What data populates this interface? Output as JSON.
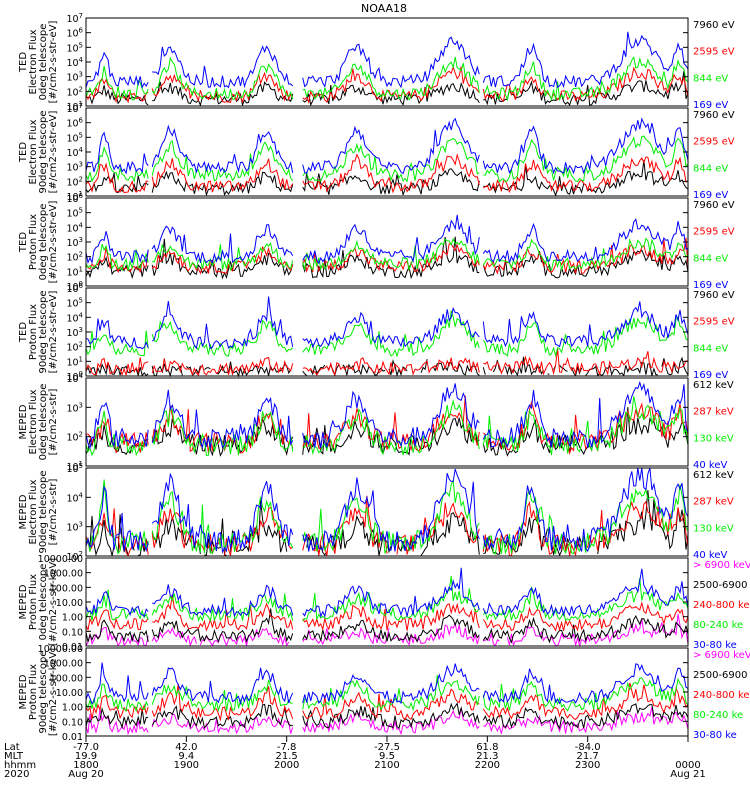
{
  "chart_data": {
    "type": "line",
    "title": "NOAA18",
    "year": "2020",
    "panels": [
      {
        "ylabel": [
          "TED",
          "Electron Flux",
          "0deg telescope",
          "[#/cm2-s-str-eV]"
        ],
        "ytick_labels": [
          "10^1",
          "10^2",
          "10^3",
          "10^4",
          "10^5",
          "10^6",
          "10^7"
        ],
        "scale": "log",
        "ylim_exp": [
          0.5,
          7
        ],
        "series": [
          {
            "name": "7960 eV",
            "color": "#000000",
            "base": 1.0,
            "amp": 1.0
          },
          {
            "name": "2595 eV",
            "color": "#ff0000",
            "base": 1.2,
            "amp": 1.8
          },
          {
            "name": "844 eV",
            "color": "#00ee00",
            "base": 1.4,
            "amp": 2.4
          },
          {
            "name": "169 eV",
            "color": "#0000ff",
            "base": 2.3,
            "amp": 3.0
          }
        ]
      },
      {
        "ylabel": [
          "TED",
          "Electron Flux",
          "90deg telescope",
          "[#/cm2-s-str-eV]"
        ],
        "ytick_labels": [
          "10^1",
          "10^2",
          "10^3",
          "10^4",
          "10^5",
          "10^6",
          "10^7"
        ],
        "scale": "log",
        "ylim_exp": [
          0.5,
          7
        ],
        "series": [
          {
            "name": "7960 eV",
            "color": "#000000",
            "base": 1.0,
            "amp": 1.1
          },
          {
            "name": "2595 eV",
            "color": "#ff0000",
            "base": 1.2,
            "amp": 2.0
          },
          {
            "name": "844 eV",
            "color": "#00ee00",
            "base": 2.0,
            "amp": 2.6
          },
          {
            "name": "169 eV",
            "color": "#0000ff",
            "base": 2.6,
            "amp": 3.2
          }
        ]
      },
      {
        "ylabel": [
          "TED",
          "Proton Flux",
          "0deg telescope",
          "[#/cm2-s-str-eV]"
        ],
        "ytick_labels": [
          "10^0",
          "10^1",
          "10^2",
          "10^3",
          "10^4",
          "10^5",
          "10^6"
        ],
        "scale": "log",
        "ylim_exp": [
          0,
          6
        ],
        "series": [
          {
            "name": "7960 eV",
            "color": "#000000",
            "base": 1.0,
            "amp": 1.0
          },
          {
            "name": "2595 eV",
            "color": "#ff0000",
            "base": 1.3,
            "amp": 1.2
          },
          {
            "name": "844 eV",
            "color": "#00ee00",
            "base": 1.5,
            "amp": 1.5
          },
          {
            "name": "169 eV",
            "color": "#0000ff",
            "base": 2.0,
            "amp": 2.2
          }
        ]
      },
      {
        "ylabel": [
          "TED",
          "Proton Flux",
          "90deg telescope",
          "[#/cm2-s-str-eV]"
        ],
        "ytick_labels": [
          "10^0",
          "10^1",
          "10^2",
          "10^3",
          "10^4",
          "10^5",
          "10^6"
        ],
        "scale": "log",
        "ylim_exp": [
          0,
          6
        ],
        "series": [
          {
            "name": "7960 eV",
            "color": "#000000",
            "base": 0.3,
            "amp": 0.2
          },
          {
            "name": "2595 eV",
            "color": "#ff0000",
            "base": 0.5,
            "amp": 0.4
          },
          {
            "name": "844 eV",
            "color": "#00ee00",
            "base": 1.8,
            "amp": 2.0
          },
          {
            "name": "169 eV",
            "color": "#0000ff",
            "base": 2.3,
            "amp": 2.0
          }
        ]
      },
      {
        "ylabel": [
          "MEPED",
          "Electron Flux",
          "0deg telescope",
          "[#/cm2-s-str]"
        ],
        "ytick_labels": [
          "10^1",
          "10^2",
          "10^3",
          "10^4"
        ],
        "scale": "log",
        "ylim_exp": [
          1,
          4.8
        ],
        "series": [
          {
            "name": "612 keV",
            "color": "#000000",
            "base": 1.9,
            "amp": 0.9
          },
          {
            "name": "287 keV",
            "color": "#ff0000",
            "base": 2.0,
            "amp": 1.4
          },
          {
            "name": "130 keV",
            "color": "#00ee00",
            "base": 1.9,
            "amp": 1.5
          },
          {
            "name": "40 keV",
            "color": "#0000ff",
            "base": 2.2,
            "amp": 2.0
          }
        ]
      },
      {
        "ylabel": [
          "MEPED",
          "Electron Flux",
          "90deg telescope",
          "[#/cm2-s-str]"
        ],
        "ytick_labels": [
          "10^2",
          "10^3",
          "10^4",
          "10^5"
        ],
        "scale": "log",
        "ylim_exp": [
          1.6,
          5
        ],
        "series": [
          {
            "name": "612 keV",
            "color": "#000000",
            "base": 1.9,
            "amp": 1.0
          },
          {
            "name": "287 keV",
            "color": "#ff0000",
            "base": 2.0,
            "amp": 1.5
          },
          {
            "name": "130 keV",
            "color": "#00ee00",
            "base": 2.1,
            "amp": 2.0
          },
          {
            "name": "40 keV",
            "color": "#0000ff",
            "base": 2.2,
            "amp": 2.5
          }
        ]
      },
      {
        "ylabel": [
          "MEPED",
          "Proton Flux",
          "0deg telescope",
          "[#/cm2-s-str-keV]"
        ],
        "ytick_labels": [
          "0.01",
          "0.10",
          "1.00",
          "10.00",
          "100.00",
          "1000.00",
          "10000.00"
        ],
        "scale": "log",
        "ylim_exp": [
          -2.2,
          4
        ],
        "series": [
          {
            "name": "> 6900 keV",
            "color": "#ff00ff",
            "base": -1.8,
            "amp": 0.8
          },
          {
            "name": "2500-6900",
            "color": "#000000",
            "base": -1.5,
            "amp": 1.0
          },
          {
            "name": "240-800 ke",
            "color": "#ff0000",
            "base": -0.7,
            "amp": 1.2
          },
          {
            "name": "80-240 ke",
            "color": "#00ee00",
            "base": 0.0,
            "amp": 1.4
          },
          {
            "name": "30-80 ke",
            "color": "#0000ff",
            "base": 0.3,
            "amp": 1.7
          }
        ]
      },
      {
        "ylabel": [
          "MEPED",
          "Proton Flux",
          "90deg telescope",
          "[#/cm2-s-str-keV]"
        ],
        "ytick_labels": [
          "0.01",
          "0.10",
          "1.00",
          "10.00",
          "100.00",
          "1000.00",
          "10000.00"
        ],
        "scale": "log",
        "ylim_exp": [
          -2.2,
          4
        ],
        "series": [
          {
            "name": "> 6900 keV",
            "color": "#ff00ff",
            "base": -1.6,
            "amp": 0.8
          },
          {
            "name": "2500-6900",
            "color": "#000000",
            "base": -1.2,
            "amp": 1.0
          },
          {
            "name": "240-800 ke",
            "color": "#ff0000",
            "base": -0.6,
            "amp": 1.3
          },
          {
            "name": "80-240 ke",
            "color": "#00ee00",
            "base": 0.0,
            "amp": 1.6
          },
          {
            "name": "30-80 ke",
            "color": "#0000ff",
            "base": 0.5,
            "amp": 2.0
          }
        ]
      }
    ],
    "x_axis": {
      "row_labels": [
        "Lat",
        "MLT",
        "hhmm",
        "2020"
      ],
      "ticks": [
        {
          "lat": "-77.0",
          "mlt": "19.9",
          "hhmm": "1800",
          "date": "Aug 20"
        },
        {
          "lat": "42.0",
          "mlt": "9.4",
          "hhmm": "1900",
          "date": ""
        },
        {
          "lat": "-7.8",
          "mlt": "21.5",
          "hhmm": "2000",
          "date": ""
        },
        {
          "lat": "-27.5",
          "mlt": "9.5",
          "hhmm": "2100",
          "date": ""
        },
        {
          "lat": "61.8",
          "mlt": "21.3",
          "hhmm": "2200",
          "date": ""
        },
        {
          "lat": "-84.0",
          "mlt": "21.7",
          "hhmm": "2300",
          "date": ""
        },
        {
          "lat": "",
          "mlt": "",
          "hhmm": "0000",
          "date": "Aug 21"
        }
      ]
    },
    "passes": [
      {
        "center": 0.03,
        "width": 0.012,
        "kind": "belt"
      },
      {
        "center": 0.14,
        "width": 0.025,
        "kind": "spike"
      },
      {
        "center": 0.3,
        "width": 0.025,
        "kind": "spike"
      },
      {
        "center": 0.45,
        "width": 0.03,
        "kind": "spike"
      },
      {
        "center": 0.61,
        "width": 0.04,
        "kind": "hump"
      },
      {
        "center": 0.74,
        "width": 0.02,
        "kind": "spike"
      },
      {
        "center": 0.92,
        "width": 0.05,
        "kind": "hump"
      },
      {
        "center": 0.985,
        "width": 0.015,
        "kind": "spike"
      }
    ]
  }
}
